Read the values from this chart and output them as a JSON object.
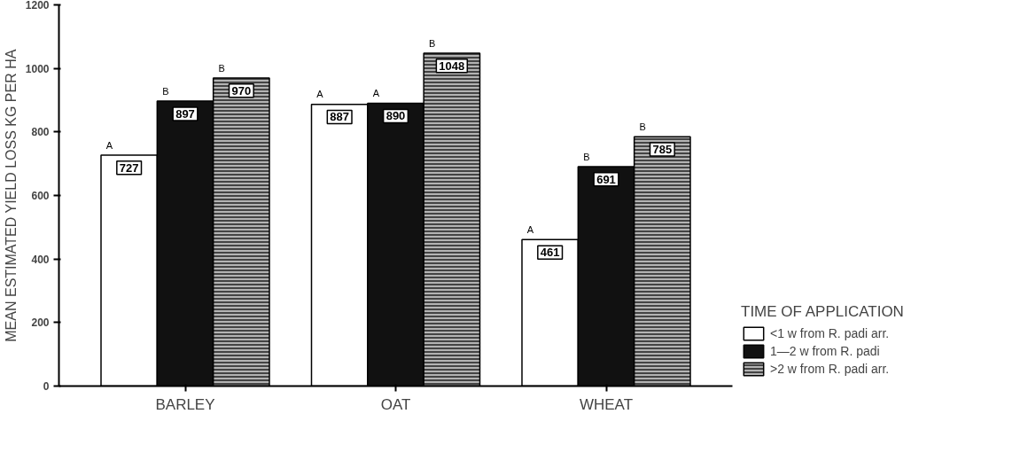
{
  "chart_data": {
    "type": "bar",
    "ylabel": "MEAN ESTIMATED YIELD LOSS KG PER HA",
    "legend_title": "TIME OF APPLICATION",
    "categories": [
      "BARLEY",
      "OAT",
      "WHEAT"
    ],
    "series": [
      {
        "name": "<1 w from R. padi arr.",
        "color": "#ffffff",
        "values": [
          727,
          887,
          461
        ]
      },
      {
        "name": "1—2 w from R. padi",
        "color": "#111111",
        "values": [
          897,
          890,
          691
        ]
      },
      {
        "name": ">2 w from R. padi arr.",
        "color": "#444444",
        "values": [
          970,
          1048,
          785
        ]
      }
    ],
    "ylim": [
      0,
      1200
    ],
    "yticks": [
      0,
      200,
      400,
      600,
      800,
      1000,
      1200
    ],
    "data_labels": true,
    "grid": false,
    "legend": "right",
    "annotations": [
      "A",
      "B",
      "B",
      "A",
      "A",
      "B",
      "A",
      "B",
      "B"
    ]
  }
}
